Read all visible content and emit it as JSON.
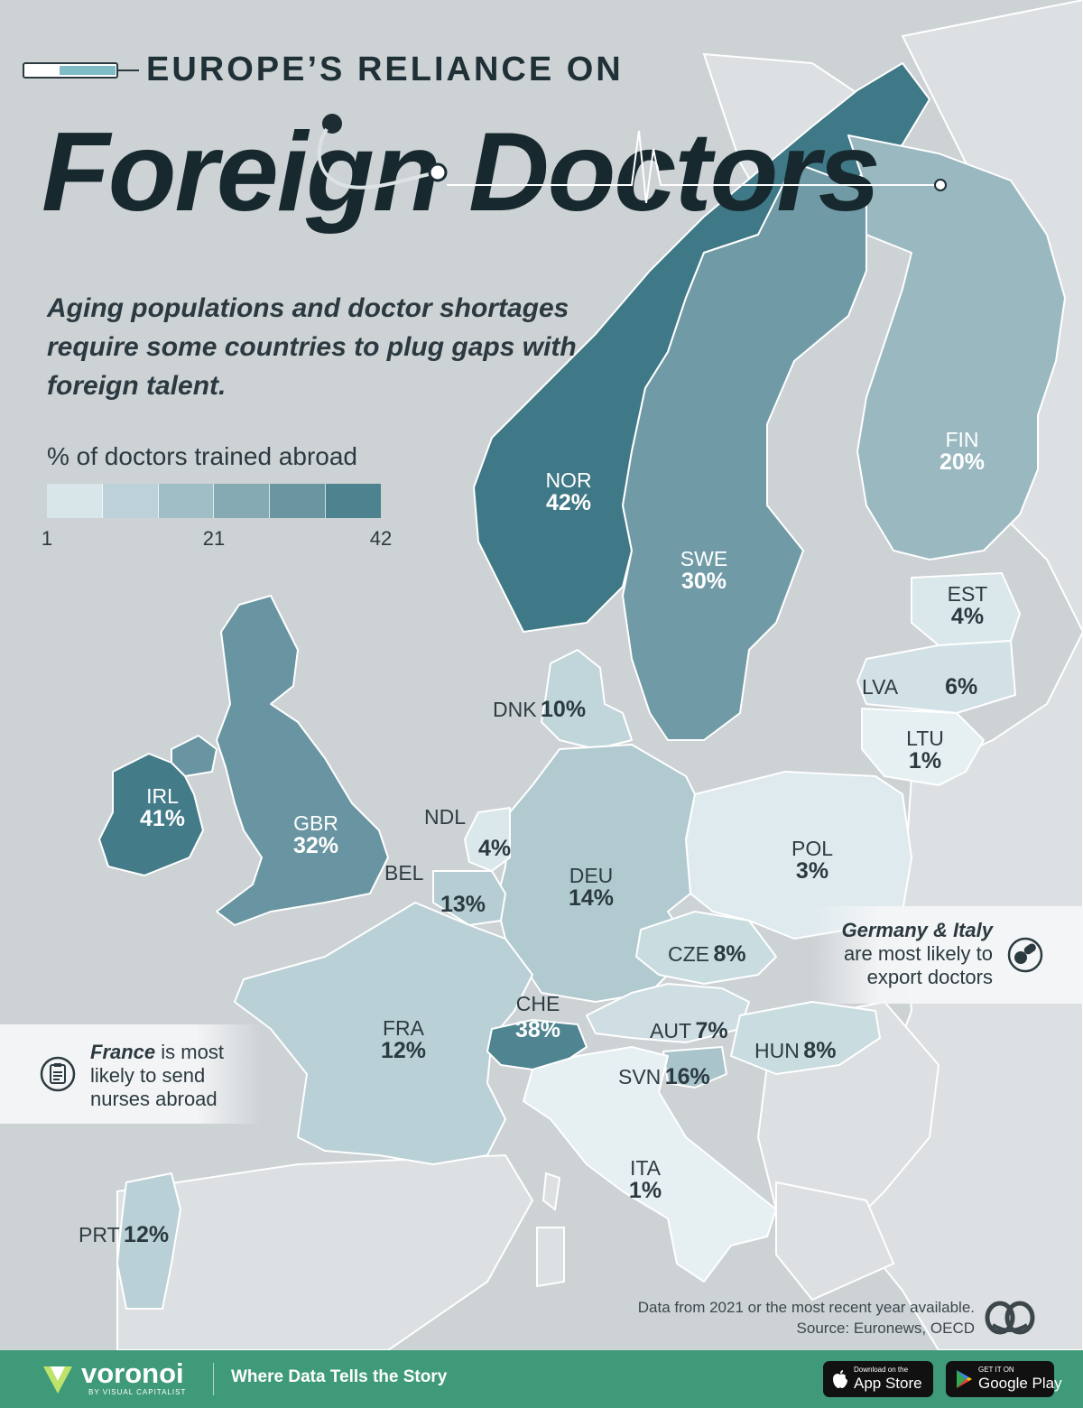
{
  "header": {
    "eyebrow": "EUROPE’S RELIANCE ON",
    "title": "Foreign Doctors",
    "subtitle": "Aging populations and doctor shortages require some countries to plug gaps with foreign talent."
  },
  "legend": {
    "title": "% of doctors trained abroad",
    "min_label": "1",
    "mid_label": "21",
    "max_label": "42",
    "min_value": 1,
    "max_value": 42,
    "color_low": "#e6f0f3",
    "color_high": "#3f7886"
  },
  "colors": {
    "background": "#cfd3d6",
    "land_other": "#dfe2e4",
    "border": "#ffffff",
    "footer": "#3f9a79",
    "title": "#17292f"
  },
  "chart_data": {
    "type": "choropleth",
    "metric": "% of doctors trained abroad",
    "countries": [
      {
        "code": "NOR",
        "value": 42,
        "label": "42%"
      },
      {
        "code": "IRL",
        "value": 41,
        "label": "41%"
      },
      {
        "code": "CHE",
        "value": 38,
        "label": "38%"
      },
      {
        "code": "GBR",
        "value": 32,
        "label": "32%"
      },
      {
        "code": "SWE",
        "value": 30,
        "label": "30%"
      },
      {
        "code": "FIN",
        "value": 20,
        "label": "20%"
      },
      {
        "code": "SVN",
        "value": 16,
        "label": "16%"
      },
      {
        "code": "DEU",
        "value": 14,
        "label": "14%"
      },
      {
        "code": "BEL",
        "value": 13,
        "label": "13%"
      },
      {
        "code": "FRA",
        "value": 12,
        "label": "12%"
      },
      {
        "code": "PRT",
        "value": 12,
        "label": "12%"
      },
      {
        "code": "DNK",
        "value": 10,
        "label": "10%"
      },
      {
        "code": "CZE",
        "value": 8,
        "label": "8%"
      },
      {
        "code": "HUN",
        "value": 8,
        "label": "8%"
      },
      {
        "code": "AUT",
        "value": 7,
        "label": "7%"
      },
      {
        "code": "LVA",
        "value": 6,
        "label": "6%"
      },
      {
        "code": "EST",
        "value": 4,
        "label": "4%"
      },
      {
        "code": "NDL",
        "value": 4,
        "label": "4%"
      },
      {
        "code": "POL",
        "value": 3,
        "label": "3%"
      },
      {
        "code": "LTU",
        "value": 1,
        "label": "1%"
      },
      {
        "code": "ITA",
        "value": 1,
        "label": "1%"
      }
    ]
  },
  "callouts": {
    "germany_italy": {
      "bold": "Germany & Italy",
      "rest_line1": "are most likely to",
      "rest_line2": "export doctors",
      "icon": "pills-icon"
    },
    "france": {
      "bold": "France",
      "rest_line1": " is most",
      "rest_line2": "likely to send",
      "rest_line3": "nurses abroad",
      "icon": "clipboard-icon"
    }
  },
  "footnote": {
    "line1": "Data from 2021 or the most recent year available.",
    "line2": "Source: Euronews, OECD"
  },
  "footer": {
    "brand": "voronoi",
    "brand_sub": "BY VISUAL CAPITALIST",
    "tagline": "Where Data Tells the Story",
    "app_store_small": "Download on the",
    "app_store": "App Store",
    "google_play_small": "GET IT ON",
    "google_play": "Google Play"
  }
}
